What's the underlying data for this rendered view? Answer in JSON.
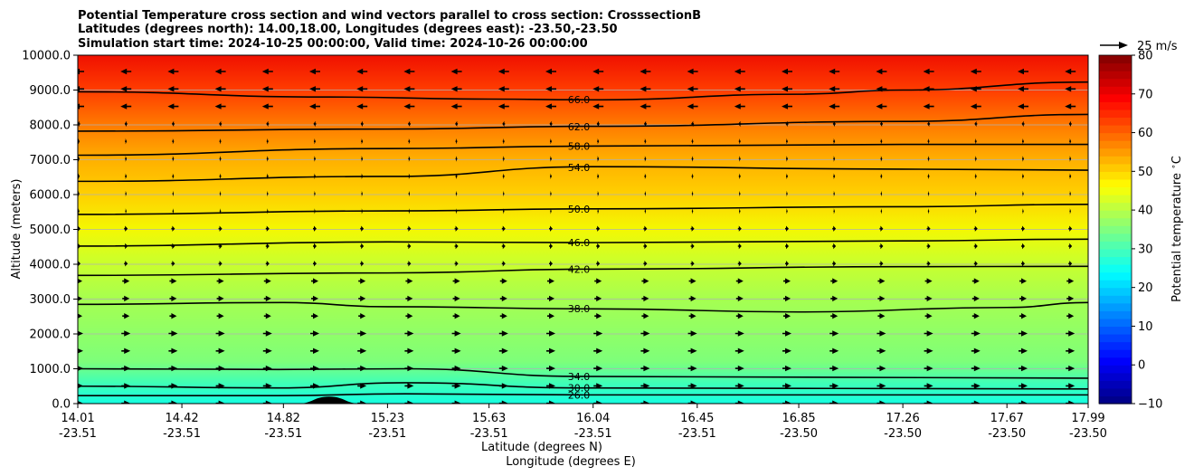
{
  "chart_data": {
    "type": "contourf",
    "title_lines": [
      "Potential Temperature cross section and wind vectors parallel to cross section: CrosssectionB",
      "Latitudes (degrees north): 14.00,18.00, Longitudes (degrees east): -23.50,-23.50",
      "Simulation start time: 2024-10-25 00:00:00, Valid time: 2024-10-26 00:00:00"
    ],
    "xlabel_lines": [
      "Latitude (degrees N)",
      "Longitude (degrees E)"
    ],
    "ylabel": "Altitude (meters)",
    "xlim": [
      14.01,
      17.99
    ],
    "ylim": [
      0,
      10000
    ],
    "x_ticks": [
      {
        "lat": "14.01",
        "lon": "-23.51"
      },
      {
        "lat": "14.42",
        "lon": "-23.51"
      },
      {
        "lat": "14.82",
        "lon": "-23.51"
      },
      {
        "lat": "15.23",
        "lon": "-23.51"
      },
      {
        "lat": "15.63",
        "lon": "-23.51"
      },
      {
        "lat": "16.04",
        "lon": "-23.51"
      },
      {
        "lat": "16.45",
        "lon": "-23.51"
      },
      {
        "lat": "16.85",
        "lon": "-23.50"
      },
      {
        "lat": "17.26",
        "lon": "-23.50"
      },
      {
        "lat": "17.67",
        "lon": "-23.50"
      },
      {
        "lat": "17.99",
        "lon": "-23.50"
      }
    ],
    "y_ticks": [
      "0.0",
      "1000.0",
      "2000.0",
      "3000.0",
      "4000.0",
      "5000.0",
      "6000.0",
      "7000.0",
      "8000.0",
      "9000.0",
      "10000.0"
    ],
    "y_gridlines": true,
    "colorbar": {
      "label": "Potential temperature $^\\circ$C",
      "min": -10,
      "max": 80,
      "ticks": [
        "−10",
        "0",
        "10",
        "20",
        "30",
        "40",
        "50",
        "60",
        "70",
        "80"
      ],
      "colormap": "jet"
    },
    "contours": [
      {
        "level": 26,
        "label": "26.0",
        "points": [
          [
            14.01,
            230
          ],
          [
            14.8,
            230
          ],
          [
            15.3,
            280
          ],
          [
            16.0,
            250
          ],
          [
            17.99,
            250
          ]
        ]
      },
      {
        "level": 30,
        "label": "30.0",
        "points": [
          [
            14.01,
            500
          ],
          [
            14.8,
            450
          ],
          [
            15.3,
            600
          ],
          [
            16.0,
            450
          ],
          [
            17.99,
            420
          ]
        ]
      },
      {
        "level": 34,
        "label": "34.0",
        "points": [
          [
            14.01,
            1000
          ],
          [
            14.8,
            980
          ],
          [
            15.3,
            1000
          ],
          [
            16.0,
            780
          ],
          [
            17.99,
            730
          ]
        ]
      },
      {
        "level": 38,
        "label": "38.0",
        "points": [
          [
            14.01,
            2850
          ],
          [
            14.82,
            2900
          ],
          [
            15.23,
            2780
          ],
          [
            16.04,
            2720
          ],
          [
            16.85,
            2630
          ],
          [
            17.67,
            2760
          ],
          [
            17.99,
            2900
          ]
        ]
      },
      {
        "level": 42,
        "label": "42.0",
        "points": [
          [
            14.01,
            3680
          ],
          [
            15.23,
            3750
          ],
          [
            16.04,
            3860
          ],
          [
            17.26,
            3930
          ],
          [
            17.99,
            3940
          ]
        ]
      },
      {
        "level": 46,
        "label": "46.0",
        "points": [
          [
            14.01,
            4520
          ],
          [
            15.23,
            4640
          ],
          [
            16.04,
            4620
          ],
          [
            17.26,
            4670
          ],
          [
            17.99,
            4720
          ]
        ]
      },
      {
        "level": 50,
        "label": "50.0",
        "points": [
          [
            14.01,
            5430
          ],
          [
            15.23,
            5530
          ],
          [
            16.04,
            5590
          ],
          [
            17.26,
            5650
          ],
          [
            17.99,
            5720
          ]
        ]
      },
      {
        "level": 54,
        "label": "54.0",
        "points": [
          [
            14.01,
            6380
          ],
          [
            15.23,
            6520
          ],
          [
            16.04,
            6800
          ],
          [
            17.26,
            6730
          ],
          [
            17.99,
            6700
          ]
        ]
      },
      {
        "level": 58,
        "label": "58.0",
        "points": [
          [
            14.01,
            7130
          ],
          [
            15.23,
            7320
          ],
          [
            16.04,
            7390
          ],
          [
            17.26,
            7440
          ],
          [
            17.99,
            7440
          ]
        ]
      },
      {
        "level": 62,
        "label": "62.0",
        "points": [
          [
            14.01,
            7820
          ],
          [
            15.23,
            7880
          ],
          [
            16.04,
            7960
          ],
          [
            17.26,
            8100
          ],
          [
            17.99,
            8300
          ]
        ]
      },
      {
        "level": 66,
        "label": "66.0",
        "points": [
          [
            14.01,
            8950
          ],
          [
            15.0,
            8800
          ],
          [
            15.63,
            8740
          ],
          [
            16.04,
            8720
          ],
          [
            16.85,
            8880
          ],
          [
            17.26,
            9000
          ],
          [
            17.99,
            9230
          ]
        ]
      }
    ],
    "terrain": {
      "center_lat": 15.0,
      "half_width_deg": 0.12,
      "peak_m": 200
    },
    "wind_key": {
      "label": "25 m/s"
    }
  }
}
